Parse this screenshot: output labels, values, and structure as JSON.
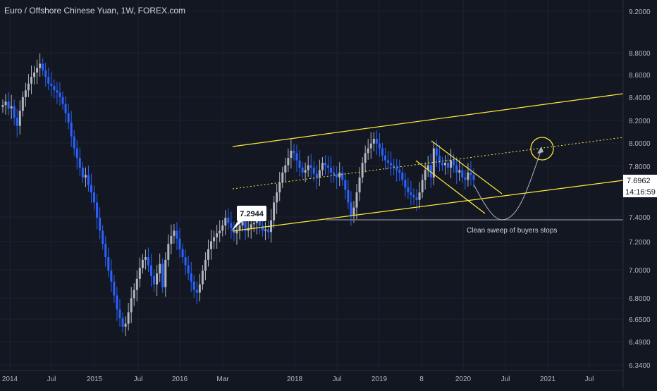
{
  "header": {
    "title": "Euro / Offshore Chinese Yuan, 1W, FOREX.com"
  },
  "colors": {
    "background": "#131722",
    "grid": "#1e222d",
    "up_candle": "#b2b5be",
    "down_candle": "#2962ff",
    "channel": "#ffeb3b",
    "support_line": "#787b86",
    "projection": "#b2b5be",
    "price_tag_bg": "#ffffff",
    "axis_text": "#b2b5be"
  },
  "chart_data": {
    "type": "candlestick",
    "title": "Euro / Offshore Chinese Yuan, 1W, FOREX.com",
    "x_ticks": [
      "2014",
      "Jul",
      "2015",
      "Jul",
      "2016",
      "Mar",
      "2018",
      "Jul",
      "2019",
      "8",
      "2020",
      "Jul",
      "2021",
      "Jul"
    ],
    "y_ticks": [
      "9.2000",
      "8.8000",
      "8.6000",
      "8.4000",
      "8.2000",
      "8.0000",
      "7.8000",
      "7.4000",
      "7.2000",
      "7.0000",
      "6.8000",
      "6.6500",
      "6.4900",
      "6.3400"
    ],
    "y_scale": "log",
    "y_range": [
      6.34,
      9.35
    ],
    "grid": true,
    "current_price": "7.6962",
    "countdown": "14:16:59",
    "annotations": {
      "low_label": "7.2944",
      "sweep_note": "Clean sweep of buyers stops"
    },
    "close_series": [
      8.33,
      8.36,
      8.3,
      8.32,
      8.22,
      8.15,
      8.28,
      8.4,
      8.46,
      8.52,
      8.58,
      8.62,
      8.66,
      8.7,
      8.64,
      8.58,
      8.52,
      8.5,
      8.46,
      8.44,
      8.4,
      8.34,
      8.26,
      8.18,
      8.06,
      7.96,
      7.88,
      7.8,
      7.72,
      7.74,
      7.66,
      7.6,
      7.52,
      7.4,
      7.3,
      7.2,
      7.1,
      7.0,
      6.92,
      6.82,
      6.72,
      6.66,
      6.6,
      6.62,
      6.7,
      6.8,
      6.86,
      6.94,
      7.02,
      7.08,
      7.1,
      7.04,
      6.96,
      6.9,
      6.98,
      7.05,
      6.88,
      7.08,
      7.2,
      7.26,
      7.3,
      7.24,
      7.16,
      7.1,
      7.04,
      6.98,
      6.92,
      6.86,
      6.84,
      6.9,
      7.0,
      7.08,
      7.16,
      7.22,
      7.25,
      7.28,
      7.3,
      7.34,
      7.4,
      7.36,
      7.32,
      7.28,
      7.3,
      7.34,
      7.38,
      7.3,
      7.32,
      7.35,
      7.36,
      7.38,
      7.34,
      7.3,
      7.31,
      7.29,
      7.38,
      7.52,
      7.6,
      7.68,
      7.76,
      7.82,
      7.88,
      7.94,
      7.92,
      7.86,
      7.8,
      7.76,
      7.78,
      7.82,
      7.8,
      7.75,
      7.72,
      7.78,
      7.84,
      7.82,
      7.8,
      7.76,
      7.74,
      7.72,
      7.76,
      7.7,
      7.62,
      7.52,
      7.42,
      7.48,
      7.6,
      7.72,
      7.84,
      7.92,
      7.96,
      8.0,
      8.04,
      8.0,
      7.96,
      7.9,
      7.86,
      7.84,
      7.82,
      7.8,
      7.78,
      7.76,
      7.7,
      7.64,
      7.6,
      7.58,
      7.56,
      7.54,
      7.6,
      7.7,
      7.78,
      7.82,
      7.72,
      7.96,
      7.9,
      7.84,
      7.82,
      7.84,
      7.8,
      7.86,
      7.82,
      7.76,
      7.78,
      7.72,
      7.7,
      7.76,
      7.74,
      7.7
    ]
  }
}
